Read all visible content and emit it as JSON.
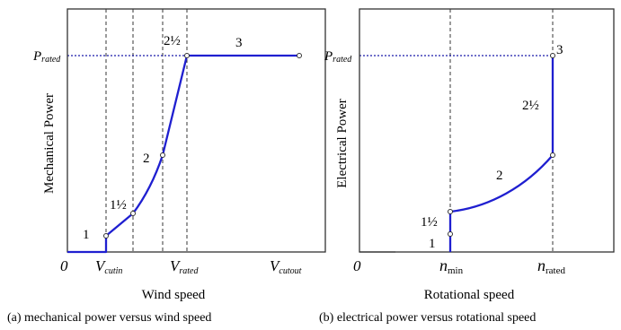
{
  "panel_a": {
    "y_axis_title": "Mechanical Power",
    "x_axis_title": "Wind speed",
    "caption": "(a) mechanical power versus wind speed",
    "p_rated_main": "P",
    "p_rated_sub": "rated",
    "origin_label": "0",
    "x_ticks": [
      {
        "main": "V",
        "sub": "cutin"
      },
      {
        "main": "V",
        "sub": "rated"
      },
      {
        "main": "V",
        "sub": "cutout"
      }
    ],
    "region_labels": [
      "1",
      "1½",
      "2",
      "2½",
      "3"
    ]
  },
  "panel_b": {
    "y_axis_title": "Electrical Power",
    "x_axis_title": "Rotational speed",
    "caption": "(b)  electrical power versus rotational speed",
    "p_rated_main": "P",
    "p_rated_sub": "rated",
    "origin_label": "0",
    "x_ticks": [
      {
        "main": "n",
        "sub": "min"
      },
      {
        "main": "n",
        "sub": "rated"
      }
    ],
    "region_labels": [
      "1",
      "1½",
      "2",
      "2½",
      "3"
    ]
  },
  "colors": {
    "curve": "#1f1fd0",
    "rated_line": "#1a1aaa",
    "frame": "#333333"
  }
}
